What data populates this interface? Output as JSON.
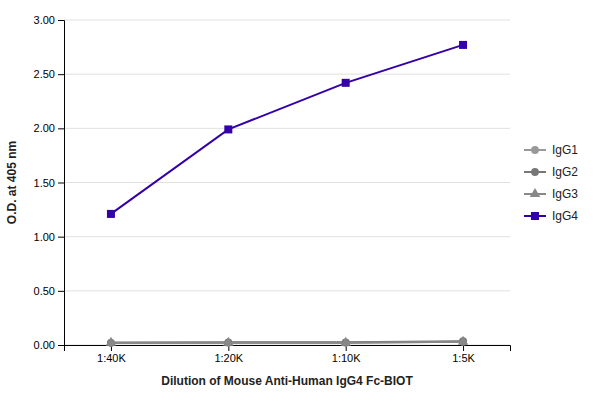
{
  "chart_data": {
    "type": "line",
    "x_label": "Dilution of Mouse Anti-Human IgG4 Fc-BIOT",
    "y_label": "O.D. at 405 nm",
    "categories": [
      "1:40K",
      "1:20K",
      "1:10K",
      "1:5K"
    ],
    "series": [
      {
        "name": "IgG1",
        "color": "#999999",
        "marker": "circle",
        "values": [
          0.02,
          0.02,
          0.02,
          0.03
        ]
      },
      {
        "name": "IgG2",
        "color": "#777777",
        "marker": "circle",
        "values": [
          0.02,
          0.025,
          0.025,
          0.035
        ]
      },
      {
        "name": "IgG3",
        "color": "#888888",
        "marker": "triangle",
        "values": [
          0.02,
          0.02,
          0.02,
          0.03
        ]
      },
      {
        "name": "IgG4",
        "color": "#3300aa",
        "marker": "square",
        "values": [
          1.21,
          1.99,
          2.42,
          2.77
        ]
      }
    ],
    "ylim": [
      0.0,
      3.0
    ],
    "yticks": [
      {
        "value": 0.0,
        "label": "0.00"
      },
      {
        "value": 0.5,
        "label": "0.50"
      },
      {
        "value": 1.0,
        "label": "1.00"
      },
      {
        "value": 1.5,
        "label": "1.50"
      },
      {
        "value": 2.0,
        "label": "2.00"
      },
      {
        "value": 2.5,
        "label": "2.50"
      },
      {
        "value": 3.0,
        "label": "3.00"
      }
    ],
    "grid": true,
    "legend": "right"
  }
}
